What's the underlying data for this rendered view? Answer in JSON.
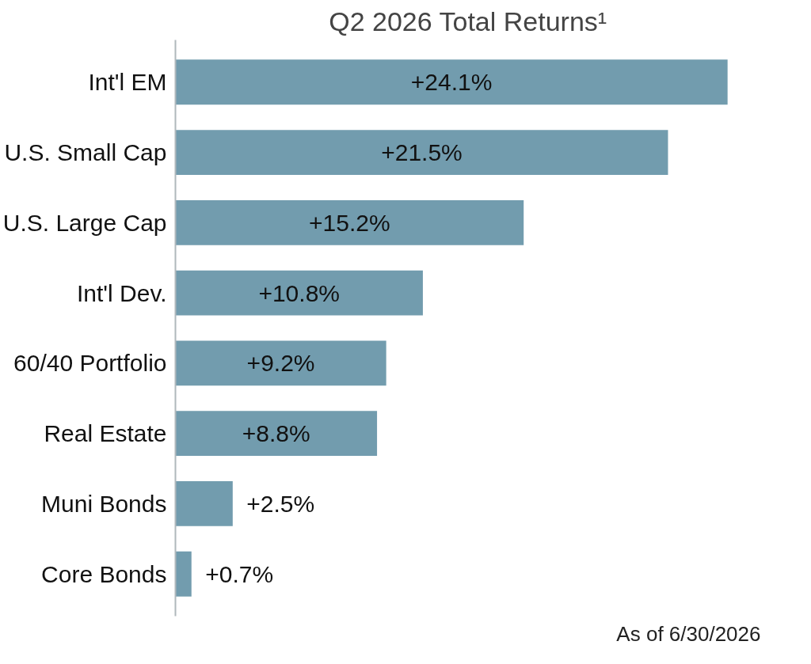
{
  "chart_data": {
    "type": "bar",
    "orientation": "horizontal",
    "title": "Q2 2026 Total Returns¹",
    "categories": [
      "Int'l EM",
      "U.S. Small Cap",
      "U.S. Large Cap",
      "Int'l Dev.",
      "60/40 Portfolio",
      "Real Estate",
      "Muni Bonds",
      "Core Bonds"
    ],
    "values": [
      24.1,
      21.5,
      15.2,
      10.8,
      9.2,
      8.8,
      2.5,
      0.7
    ],
    "value_labels": [
      "+24.1%",
      "+21.5%",
      "+15.2%",
      "+10.8%",
      "+9.2%",
      "+8.8%",
      "+2.5%",
      "+0.7%"
    ],
    "color": "#729cae",
    "grid": false,
    "annotations": [
      "As of 6/30/2026"
    ]
  }
}
